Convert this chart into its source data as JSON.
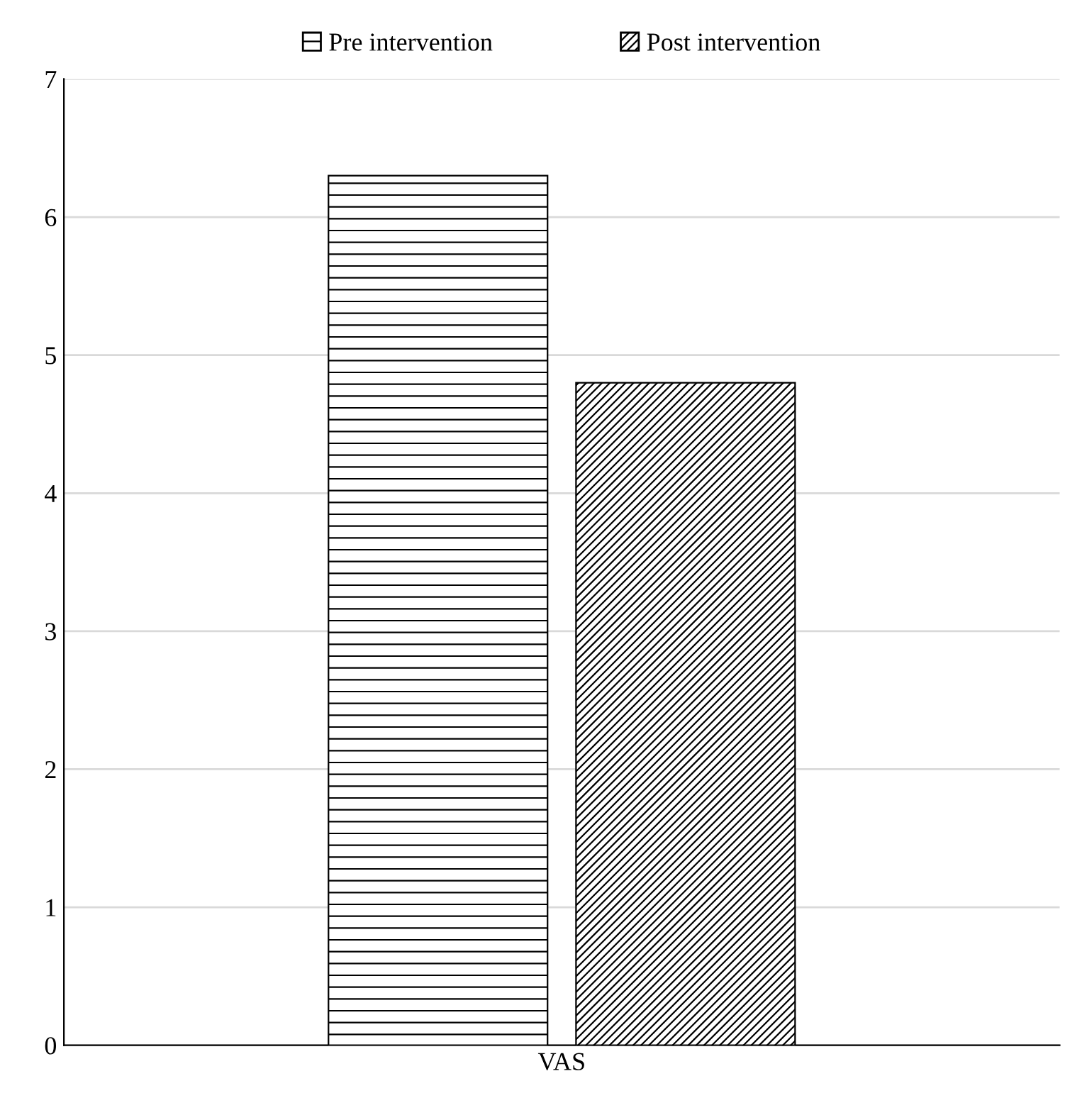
{
  "chart_data": {
    "type": "bar",
    "categories": [
      "VAS"
    ],
    "series": [
      {
        "name": "Pre intervention",
        "color": "#000000",
        "values": [
          6.3
        ]
      },
      {
        "name": "Post intervention",
        "color": "#000000",
        "values": [
          4.8
        ]
      }
    ],
    "ylim": [
      0,
      7
    ],
    "yticks": [
      0,
      1,
      2,
      3,
      4,
      5,
      6,
      7
    ],
    "grid": "y",
    "legend": "top"
  }
}
